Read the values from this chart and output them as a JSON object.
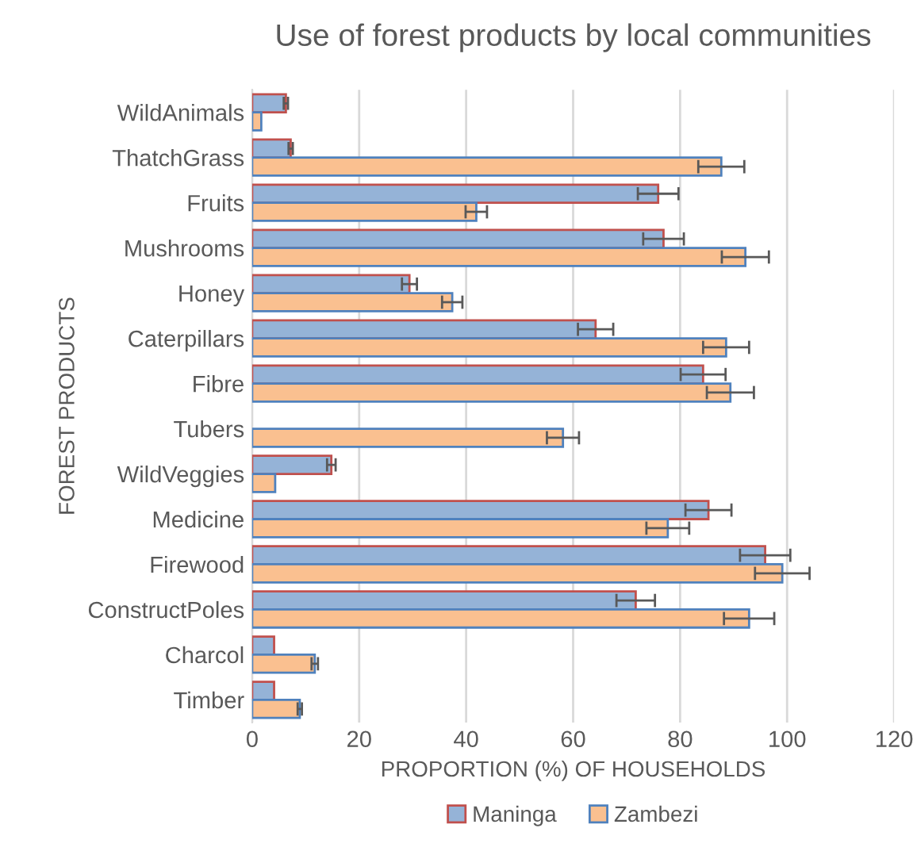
{
  "chart_data": {
    "type": "bar",
    "orientation": "horizontal",
    "title": "Use of forest products by local communities",
    "xlabel": "PROPORTION (%) OF HOUSEHOLDS",
    "ylabel": "FOREST PRODUCTS",
    "categories": [
      "WildAnimals",
      "ThatchGrass",
      "Fruits",
      "Mushrooms",
      "Honey",
      "Caterpillars",
      "Fibre",
      "Tubers",
      "WildVeggies",
      "Medicine",
      "Firewood",
      "ConstructPoles",
      "Charcol",
      "Timber"
    ],
    "series": [
      {
        "name": "Maninga",
        "color": "#95b3d7",
        "values": [
          6.3,
          7.2,
          75.9,
          76.9,
          29.4,
          64.2,
          84.3,
          null,
          14.8,
          85.3,
          95.9,
          71.7,
          4.1,
          4.1
        ],
        "errors": [
          0.4,
          0.4,
          3.8,
          3.8,
          1.4,
          3.3,
          4.2,
          null,
          0.8,
          4.3,
          4.7,
          3.6,
          null,
          null
        ]
      },
      {
        "name": "Zambezi",
        "color": "#fac090",
        "values": [
          1.7,
          87.7,
          41.9,
          92.2,
          37.4,
          88.6,
          89.4,
          58.1,
          4.3,
          77.7,
          99.1,
          92.9,
          11.7,
          8.9
        ],
        "errors": [
          null,
          4.3,
          2.0,
          4.4,
          1.9,
          4.3,
          4.4,
          3.0,
          null,
          4.0,
          5.1,
          4.7,
          0.6,
          0.4
        ]
      }
    ],
    "xlim": [
      0,
      120
    ],
    "xticks": [
      0,
      20,
      40,
      60,
      80,
      100,
      120
    ],
    "grid": "x",
    "legend": "bottom"
  }
}
